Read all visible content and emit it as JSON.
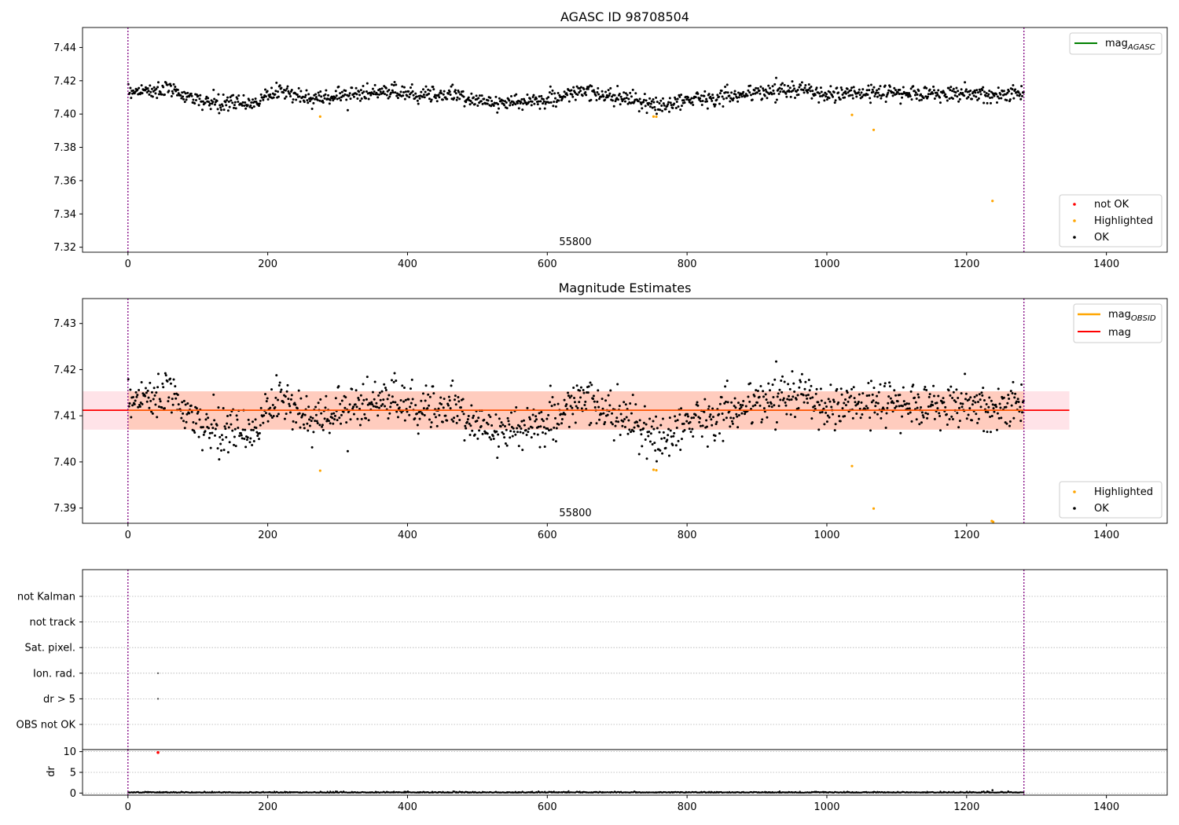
{
  "chart_data": [
    {
      "id": "agasc",
      "type": "scatter",
      "title": "AGASC ID 98708504",
      "xlim": [
        -65,
        1487
      ],
      "ylim": [
        7.317,
        7.452
      ],
      "x_ticks": [
        0,
        200,
        400,
        600,
        800,
        1000,
        1200,
        1400
      ],
      "y_ticks": [
        7.32,
        7.34,
        7.36,
        7.38,
        7.4,
        7.42,
        7.44
      ],
      "y_tick_labels": [
        "7.32",
        "7.34",
        "7.36",
        "7.38",
        "7.40",
        "7.42",
        "7.44"
      ],
      "obs_bounds": [
        0,
        1282
      ],
      "annotation": {
        "text": "55800",
        "x": 641,
        "y": 7.3205
      },
      "legend_lines": [
        {
          "name": "mag",
          "sub": "AGASC",
          "color": "#008000"
        }
      ],
      "legend_markers": [
        {
          "name": "not OK",
          "color": "#ff0000"
        },
        {
          "name": "Highlighted",
          "color": "#ffa500"
        },
        {
          "name": "OK",
          "color": "#000000"
        }
      ],
      "series": [
        {
          "name": "OK",
          "color": "#000000",
          "n": 1282,
          "baseline": 7.4115,
          "wave": [
            [
              0,
              7.414
            ],
            [
              60,
              7.4145
            ],
            [
              120,
              7.406
            ],
            [
              180,
              7.407
            ],
            [
              220,
              7.4145
            ],
            [
              260,
              7.409
            ],
            [
              330,
              7.4125
            ],
            [
              400,
              7.413
            ],
            [
              460,
              7.4115
            ],
            [
              540,
              7.406
            ],
            [
              620,
              7.41
            ],
            [
              650,
              7.414
            ],
            [
              720,
              7.408
            ],
            [
              760,
              7.4045
            ],
            [
              800,
              7.409
            ],
            [
              900,
              7.4125
            ],
            [
              950,
              7.4155
            ],
            [
              1000,
              7.4115
            ],
            [
              1080,
              7.413
            ],
            [
              1150,
              7.4125
            ],
            [
              1282,
              7.412
            ]
          ]
        },
        {
          "name": "Highlighted",
          "color": "#ffa500",
          "points": [
            [
              275,
              7.3985
            ],
            [
              752,
              7.3985
            ],
            [
              756,
              7.3984
            ],
            [
              1036,
              7.3995
            ],
            [
              1067,
              7.3905
            ],
            [
              1237,
              7.3478
            ]
          ]
        }
      ]
    },
    {
      "id": "estimates",
      "type": "scatter",
      "title": "Magnitude Estimates",
      "xlim": [
        -65,
        1487
      ],
      "ylim": [
        7.3867,
        7.4354
      ],
      "x_ticks": [
        0,
        200,
        400,
        600,
        800,
        1000,
        1200,
        1400
      ],
      "y_ticks": [
        7.39,
        7.4,
        7.41,
        7.42,
        7.43
      ],
      "y_tick_labels": [
        "7.39",
        "7.40",
        "7.41",
        "7.42",
        "7.43"
      ],
      "obs_bounds": [
        0,
        1282
      ],
      "annotation": {
        "text": "55800",
        "x": 641,
        "y": 7.3875
      },
      "mag_obsid": {
        "value": 7.4112,
        "x": [
          0,
          1282
        ],
        "color": "#ffa500"
      },
      "mag": {
        "value": 7.4112,
        "x": [
          -65,
          1347
        ],
        "color": "#ff0000"
      },
      "band": {
        "low": 7.407,
        "high": 7.4153,
        "x": [
          -65,
          1347
        ]
      },
      "legend_lines": [
        {
          "name": "mag",
          "sub": "OBSID",
          "color": "#ffa500"
        },
        {
          "name": "mag",
          "sub": "",
          "color": "#ff0000"
        }
      ],
      "legend_markers": [
        {
          "name": "Highlighted",
          "color": "#ffa500"
        },
        {
          "name": "OK",
          "color": "#000000"
        }
      ],
      "series": [
        {
          "name": "Highlighted",
          "color": "#ffa500",
          "points": [
            [
              275,
              7.3981
            ],
            [
              752,
              7.3983
            ],
            [
              756,
              7.3982
            ],
            [
              1036,
              7.3991
            ],
            [
              1067,
              7.3899
            ],
            [
              1236,
              7.3872
            ],
            [
              1238,
              7.387
            ]
          ]
        }
      ]
    },
    {
      "id": "flags",
      "type": "scatter",
      "xlim": [
        -65,
        1487
      ],
      "categories": [
        "not Kalman",
        "not track",
        "Sat. pixel.",
        "Ion. rad.",
        "dr > 5",
        "OBS not OK"
      ],
      "obs_bounds": [
        0,
        1282
      ],
      "points": [
        {
          "category": "Ion. rad.",
          "x": 43
        },
        {
          "category": "dr > 5",
          "x": 43
        }
      ]
    },
    {
      "id": "dr",
      "type": "scatter",
      "ylabel": "dr",
      "xlim": [
        -65,
        1487
      ],
      "ylim": [
        -0.5,
        10.5
      ],
      "x_ticks": [
        0,
        200,
        400,
        600,
        800,
        1000,
        1200,
        1400
      ],
      "y_ticks": [
        0,
        5,
        10
      ],
      "y_tick_labels": [
        "0",
        "5",
        "10"
      ],
      "obs_bounds": [
        0,
        1282
      ],
      "outlier": {
        "x": 43,
        "y": 9.8,
        "color": "#ff0000"
      }
    }
  ]
}
